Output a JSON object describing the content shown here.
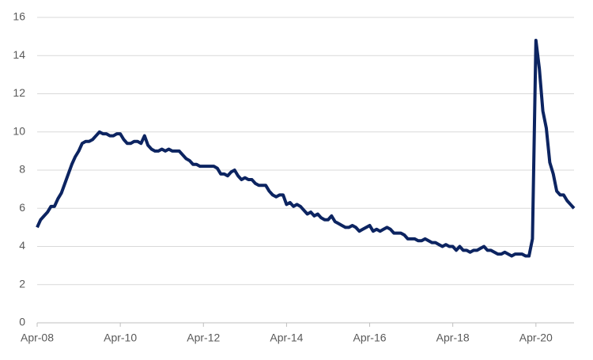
{
  "chart_data": {
    "type": "line",
    "categories": [
      "Apr-08",
      null,
      null,
      null,
      null,
      null,
      null,
      null,
      null,
      null,
      null,
      null,
      null,
      null,
      null,
      null,
      null,
      null,
      null,
      null,
      null,
      null,
      null,
      null,
      "Apr-10",
      null,
      null,
      null,
      null,
      null,
      null,
      null,
      null,
      null,
      null,
      null,
      null,
      null,
      null,
      null,
      null,
      null,
      null,
      null,
      null,
      null,
      null,
      null,
      "Apr-12",
      null,
      null,
      null,
      null,
      null,
      null,
      null,
      null,
      null,
      null,
      null,
      null,
      null,
      null,
      null,
      null,
      null,
      null,
      null,
      null,
      null,
      null,
      null,
      "Apr-14",
      null,
      null,
      null,
      null,
      null,
      null,
      null,
      null,
      null,
      null,
      null,
      null,
      null,
      null,
      null,
      null,
      null,
      null,
      null,
      null,
      null,
      null,
      null,
      "Apr-16",
      null,
      null,
      null,
      null,
      null,
      null,
      null,
      null,
      null,
      null,
      null,
      null,
      null,
      null,
      null,
      null,
      null,
      null,
      null,
      null,
      null,
      null,
      null,
      "Apr-18",
      null,
      null,
      null,
      null,
      null,
      null,
      null,
      null,
      null,
      null,
      null,
      null,
      null,
      null,
      null,
      null,
      null,
      null,
      null,
      null,
      null,
      null,
      null,
      "Apr-20",
      null,
      null,
      null,
      null,
      null,
      null,
      null,
      null,
      null,
      null,
      null
    ],
    "values": [
      5.0,
      5.4,
      5.6,
      5.8,
      6.1,
      6.1,
      6.5,
      6.8,
      7.3,
      7.8,
      8.3,
      8.7,
      9.0,
      9.4,
      9.5,
      9.5,
      9.6,
      9.8,
      10.0,
      9.9,
      9.9,
      9.8,
      9.8,
      9.9,
      9.9,
      9.6,
      9.4,
      9.4,
      9.5,
      9.5,
      9.4,
      9.8,
      9.3,
      9.1,
      9.0,
      9.0,
      9.1,
      9.0,
      9.1,
      9.0,
      9.0,
      9.0,
      8.8,
      8.6,
      8.5,
      8.3,
      8.3,
      8.2,
      8.2,
      8.2,
      8.2,
      8.2,
      8.1,
      7.8,
      7.8,
      7.7,
      7.9,
      8.0,
      7.7,
      7.5,
      7.6,
      7.5,
      7.5,
      7.3,
      7.2,
      7.2,
      7.2,
      6.9,
      6.7,
      6.6,
      6.7,
      6.7,
      6.2,
      6.3,
      6.1,
      6.2,
      6.1,
      5.9,
      5.7,
      5.8,
      5.6,
      5.7,
      5.5,
      5.4,
      5.4,
      5.6,
      5.3,
      5.2,
      5.1,
      5.0,
      5.0,
      5.1,
      5.0,
      4.8,
      4.9,
      5.0,
      5.1,
      4.8,
      4.9,
      4.8,
      4.9,
      5.0,
      4.9,
      4.7,
      4.7,
      4.7,
      4.6,
      4.4,
      4.4,
      4.4,
      4.3,
      4.3,
      4.4,
      4.3,
      4.2,
      4.2,
      4.1,
      4.0,
      4.1,
      4.0,
      4.0,
      3.8,
      4.0,
      3.8,
      3.8,
      3.7,
      3.8,
      3.8,
      3.9,
      4.0,
      3.8,
      3.8,
      3.7,
      3.6,
      3.6,
      3.7,
      3.6,
      3.5,
      3.6,
      3.6,
      3.6,
      3.5,
      3.5,
      4.4,
      14.8,
      13.3,
      11.1,
      10.2,
      8.4,
      7.8,
      6.9,
      6.7,
      6.7,
      6.4,
      6.2,
      6.0
    ],
    "color": "#0c2461",
    "ylim": [
      0,
      16
    ],
    "yticks": [
      0,
      2,
      4,
      6,
      8,
      10,
      12,
      14,
      16
    ],
    "grid": true
  }
}
